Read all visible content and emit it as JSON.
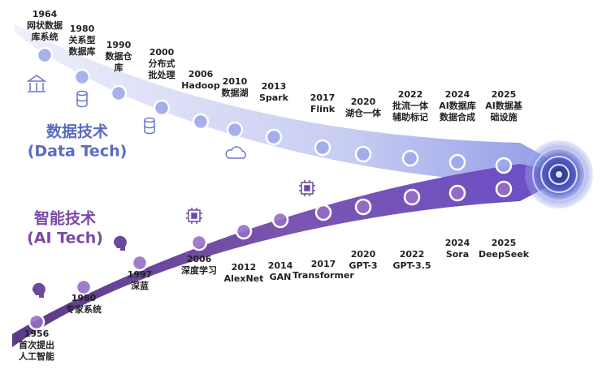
{
  "tracks": [
    {
      "title": "数据技术",
      "subtitle": "(Data Tech)",
      "milestones": [
        {
          "year": "1964",
          "label": [
            "网状数据",
            "库系统"
          ]
        },
        {
          "year": "1980",
          "label": [
            "关系型",
            "数据库"
          ]
        },
        {
          "year": "1990",
          "label": [
            "数据仓",
            "库"
          ]
        },
        {
          "year": "2000",
          "label": [
            "分布式",
            "批处理"
          ]
        },
        {
          "year": "2006",
          "label": [
            "Hadoop"
          ]
        },
        {
          "year": "2010",
          "label": [
            "数据湖"
          ]
        },
        {
          "year": "2013",
          "label": [
            "Spark"
          ]
        },
        {
          "year": "2017",
          "label": [
            "Flink"
          ]
        },
        {
          "year": "2020",
          "label": [
            "湖仓一体"
          ]
        },
        {
          "year": "2022",
          "label": [
            "批流一体",
            "辅助标记"
          ]
        },
        {
          "year": "2024",
          "label": [
            "AI数据库",
            "数据合成"
          ]
        },
        {
          "year": "2025",
          "label": [
            "AI数据基",
            "础设施"
          ]
        }
      ]
    },
    {
      "title": "智能技术",
      "subtitle": "(AI Tech)",
      "milestones": [
        {
          "year": "1956",
          "label": [
            "首次提出",
            "人工智能"
          ]
        },
        {
          "year": "1980",
          "label": [
            "专家系统"
          ]
        },
        {
          "year": "1997",
          "label": [
            "深蓝"
          ]
        },
        {
          "year": "2006",
          "label": [
            "深度学习"
          ]
        },
        {
          "year": "2012",
          "label": [
            "AlexNet"
          ]
        },
        {
          "year": "2014",
          "label": [
            "GAN"
          ]
        },
        {
          "year": "2017",
          "label": [
            "Transformer"
          ]
        },
        {
          "year": "2020",
          "label": [
            "GPT-3"
          ]
        },
        {
          "year": "2022",
          "label": [
            "GPT-3.5"
          ]
        },
        {
          "year": "2024",
          "label": [
            "Sora"
          ]
        },
        {
          "year": "2025",
          "label": [
            "DeepSeek"
          ]
        }
      ]
    }
  ]
}
